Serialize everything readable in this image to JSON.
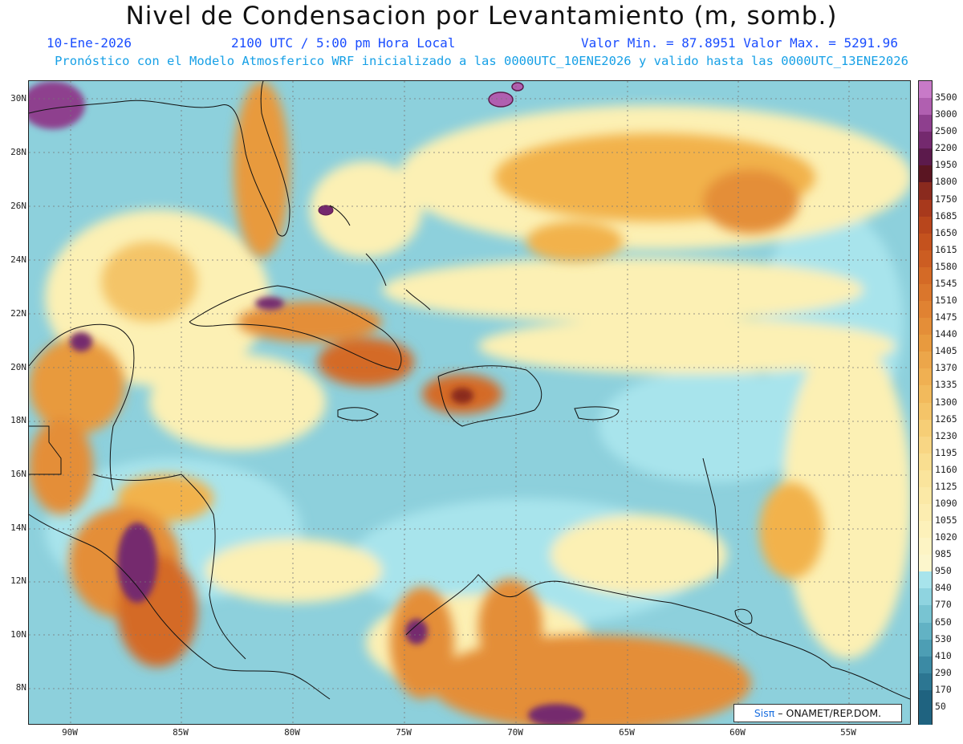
{
  "header": {
    "title": "Nivel de Condensacion por Levantamiento (m, somb.)",
    "date": "10-Ene-2026",
    "time": "2100 UTC / 5:00 pm Hora Local",
    "value_range": "Valor Min. = 87.8951   Valor Max. = 5291.96",
    "description": "Pronóstico con el Modelo Atmosferico WRF inicializado a las 0000UTC_10ENE2026 y valido hasta las  0000UTC_13ENE2026"
  },
  "map": {
    "lat_labels": [
      "30N",
      "28N",
      "26N",
      "24N",
      "22N",
      "20N",
      "18N",
      "16N",
      "14N",
      "12N",
      "10N",
      "8N"
    ],
    "lon_labels": [
      "90W",
      "85W",
      "80W",
      "75W",
      "70W",
      "65W",
      "60W",
      "55W"
    ],
    "credit_brand": "Sisπ",
    "credit_text": " – ONAMET/REP.DOM."
  },
  "colorbar": {
    "levels": [
      "3500",
      "3000",
      "2500",
      "2200",
      "1950",
      "1800",
      "1750",
      "1685",
      "1650",
      "1615",
      "1580",
      "1545",
      "1510",
      "1475",
      "1440",
      "1405",
      "1370",
      "1335",
      "1300",
      "1265",
      "1230",
      "1195",
      "1160",
      "1125",
      "1090",
      "1055",
      "1020",
      "985",
      "950",
      "840",
      "770",
      "650",
      "530",
      "410",
      "290",
      "170",
      "50"
    ],
    "colors": [
      "#c87ac8",
      "#b05fb0",
      "#8e3f8e",
      "#74296e",
      "#5c1a4c",
      "#5a1522",
      "#8a2a1e",
      "#a8391c",
      "#b8461c",
      "#c4521e",
      "#cc5d22",
      "#d46a26",
      "#da762c",
      "#e08232",
      "#e48e38",
      "#e89a3e",
      "#ec a64a",
      "#f0b052",
      "#f2ba5c",
      "#f4c468",
      "#f6ce76",
      "#f8d684",
      "#f9de90",
      "#fae49c",
      "#fbe9a6",
      "#fcedb0",
      "#fdf1ba",
      "#fdf4c4",
      "#fcf6cc",
      "#a8e4ec",
      "#8fd4e0",
      "#78c4d2",
      "#62b2c4",
      "#4d9eb4",
      "#3b8aa4",
      "#2c7692",
      "#1f6380"
    ]
  }
}
